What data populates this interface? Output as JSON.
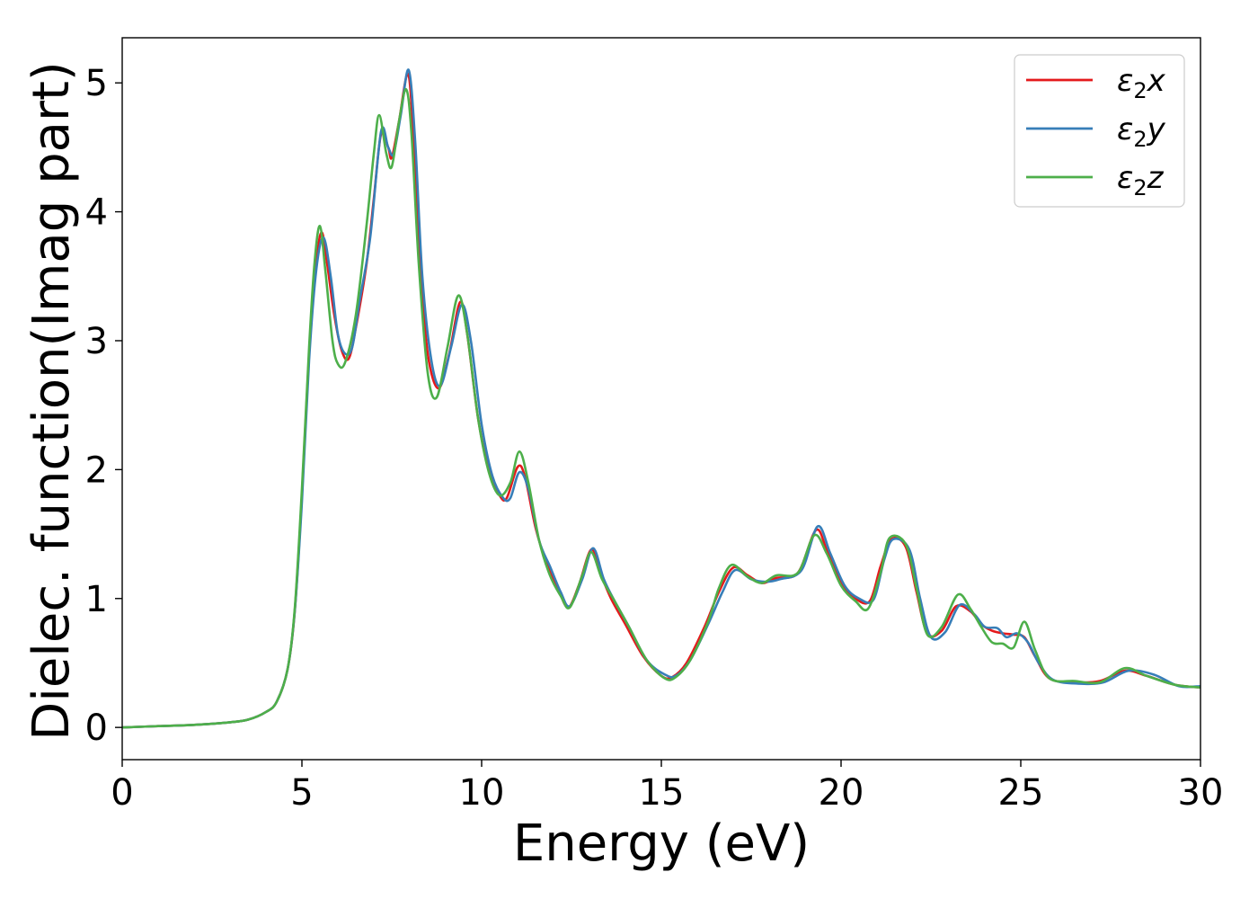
{
  "chart_data": {
    "type": "line",
    "xlabel": "Energy (eV)",
    "ylabel": "Dielec. function(Imag part)",
    "xlim": [
      0,
      30
    ],
    "ylim": [
      -0.25,
      5.35
    ],
    "xticks": [
      0,
      5,
      10,
      15,
      20,
      25,
      30
    ],
    "yticks": [
      0,
      1,
      2,
      3,
      4,
      5
    ],
    "grid": false,
    "legend_position": "top-right",
    "series": [
      {
        "name": "ε2x",
        "symbol": "ε",
        "subscript": "2",
        "suffix": "x",
        "color": "#e41a1c",
        "points": [
          [
            0,
            0
          ],
          [
            1,
            0.01
          ],
          [
            2,
            0.02
          ],
          [
            3,
            0.04
          ],
          [
            3.5,
            0.06
          ],
          [
            4,
            0.12
          ],
          [
            4.3,
            0.2
          ],
          [
            4.6,
            0.45
          ],
          [
            4.8,
            0.9
          ],
          [
            5.0,
            1.8
          ],
          [
            5.2,
            2.9
          ],
          [
            5.4,
            3.6
          ],
          [
            5.55,
            3.84
          ],
          [
            5.7,
            3.6
          ],
          [
            5.9,
            3.2
          ],
          [
            6.1,
            2.93
          ],
          [
            6.3,
            2.86
          ],
          [
            6.5,
            3.1
          ],
          [
            6.8,
            3.6
          ],
          [
            7.0,
            4.1
          ],
          [
            7.2,
            4.6
          ],
          [
            7.4,
            4.5
          ],
          [
            7.5,
            4.42
          ],
          [
            7.7,
            4.7
          ],
          [
            7.95,
            5.07
          ],
          [
            8.1,
            4.6
          ],
          [
            8.3,
            3.6
          ],
          [
            8.5,
            2.9
          ],
          [
            8.8,
            2.63
          ],
          [
            9.1,
            2.9
          ],
          [
            9.4,
            3.3
          ],
          [
            9.6,
            3.05
          ],
          [
            9.9,
            2.4
          ],
          [
            10.2,
            2.0
          ],
          [
            10.5,
            1.8
          ],
          [
            10.7,
            1.78
          ],
          [
            11.0,
            2.02
          ],
          [
            11.2,
            1.95
          ],
          [
            11.5,
            1.55
          ],
          [
            11.8,
            1.28
          ],
          [
            12.1,
            1.1
          ],
          [
            12.4,
            0.93
          ],
          [
            12.7,
            1.1
          ],
          [
            13.05,
            1.38
          ],
          [
            13.3,
            1.2
          ],
          [
            13.6,
            1.0
          ],
          [
            14.0,
            0.8
          ],
          [
            14.5,
            0.55
          ],
          [
            15.0,
            0.4
          ],
          [
            15.3,
            0.39
          ],
          [
            15.7,
            0.5
          ],
          [
            16.2,
            0.78
          ],
          [
            16.6,
            1.05
          ],
          [
            17.0,
            1.24
          ],
          [
            17.4,
            1.18
          ],
          [
            17.8,
            1.12
          ],
          [
            18.2,
            1.16
          ],
          [
            18.8,
            1.2
          ],
          [
            19.3,
            1.53
          ],
          [
            19.6,
            1.38
          ],
          [
            20.0,
            1.12
          ],
          [
            20.4,
            1.0
          ],
          [
            20.8,
            0.98
          ],
          [
            21.1,
            1.25
          ],
          [
            21.4,
            1.46
          ],
          [
            21.8,
            1.4
          ],
          [
            22.1,
            1.05
          ],
          [
            22.4,
            0.73
          ],
          [
            22.8,
            0.75
          ],
          [
            23.2,
            0.94
          ],
          [
            23.6,
            0.9
          ],
          [
            23.9,
            0.8
          ],
          [
            24.2,
            0.75
          ],
          [
            24.5,
            0.73
          ],
          [
            24.8,
            0.72
          ],
          [
            25.1,
            0.7
          ],
          [
            25.4,
            0.55
          ],
          [
            25.8,
            0.38
          ],
          [
            26.5,
            0.35
          ],
          [
            27.2,
            0.36
          ],
          [
            27.9,
            0.44
          ],
          [
            28.5,
            0.4
          ],
          [
            29.3,
            0.33
          ],
          [
            30,
            0.31
          ]
        ]
      },
      {
        "name": "ε2y",
        "symbol": "ε",
        "subscript": "2",
        "suffix": "y",
        "color": "#377eb8",
        "points": [
          [
            0,
            0
          ],
          [
            1,
            0.01
          ],
          [
            2,
            0.02
          ],
          [
            3,
            0.04
          ],
          [
            3.5,
            0.06
          ],
          [
            4,
            0.12
          ],
          [
            4.3,
            0.2
          ],
          [
            4.6,
            0.45
          ],
          [
            4.8,
            0.9
          ],
          [
            5.0,
            1.75
          ],
          [
            5.2,
            2.85
          ],
          [
            5.4,
            3.55
          ],
          [
            5.6,
            3.8
          ],
          [
            5.8,
            3.5
          ],
          [
            6.0,
            3.05
          ],
          [
            6.2,
            2.9
          ],
          [
            6.4,
            2.95
          ],
          [
            6.6,
            3.3
          ],
          [
            6.9,
            3.8
          ],
          [
            7.2,
            4.62
          ],
          [
            7.4,
            4.5
          ],
          [
            7.55,
            4.45
          ],
          [
            7.75,
            4.75
          ],
          [
            7.97,
            5.1
          ],
          [
            8.15,
            4.55
          ],
          [
            8.35,
            3.5
          ],
          [
            8.6,
            2.85
          ],
          [
            8.85,
            2.65
          ],
          [
            9.15,
            2.95
          ],
          [
            9.45,
            3.28
          ],
          [
            9.7,
            3.0
          ],
          [
            10.0,
            2.35
          ],
          [
            10.3,
            1.95
          ],
          [
            10.6,
            1.78
          ],
          [
            10.8,
            1.78
          ],
          [
            11.05,
            1.98
          ],
          [
            11.3,
            1.85
          ],
          [
            11.6,
            1.45
          ],
          [
            11.9,
            1.25
          ],
          [
            12.2,
            1.05
          ],
          [
            12.45,
            0.94
          ],
          [
            12.8,
            1.15
          ],
          [
            13.1,
            1.39
          ],
          [
            13.4,
            1.15
          ],
          [
            13.7,
            0.98
          ],
          [
            14.1,
            0.78
          ],
          [
            14.6,
            0.52
          ],
          [
            15.1,
            0.41
          ],
          [
            15.4,
            0.4
          ],
          [
            15.8,
            0.52
          ],
          [
            16.3,
            0.8
          ],
          [
            16.7,
            1.05
          ],
          [
            17.05,
            1.22
          ],
          [
            17.5,
            1.15
          ],
          [
            17.9,
            1.13
          ],
          [
            18.3,
            1.15
          ],
          [
            18.9,
            1.22
          ],
          [
            19.35,
            1.56
          ],
          [
            19.7,
            1.35
          ],
          [
            20.1,
            1.1
          ],
          [
            20.5,
            1.0
          ],
          [
            20.9,
            0.99
          ],
          [
            21.2,
            1.3
          ],
          [
            21.45,
            1.46
          ],
          [
            21.9,
            1.38
          ],
          [
            22.2,
            1.0
          ],
          [
            22.5,
            0.7
          ],
          [
            22.9,
            0.74
          ],
          [
            23.3,
            0.95
          ],
          [
            23.7,
            0.88
          ],
          [
            24.0,
            0.78
          ],
          [
            24.35,
            0.77
          ],
          [
            24.6,
            0.7
          ],
          [
            24.9,
            0.73
          ],
          [
            25.2,
            0.66
          ],
          [
            25.5,
            0.5
          ],
          [
            25.9,
            0.37
          ],
          [
            26.6,
            0.34
          ],
          [
            27.3,
            0.35
          ],
          [
            28.0,
            0.44
          ],
          [
            28.7,
            0.41
          ],
          [
            29.4,
            0.32
          ],
          [
            30,
            0.32
          ]
        ]
      },
      {
        "name": "ε2z",
        "symbol": "ε",
        "subscript": "2",
        "suffix": "z",
        "color": "#4daf4a",
        "points": [
          [
            0,
            0
          ],
          [
            1,
            0.01
          ],
          [
            2,
            0.02
          ],
          [
            3,
            0.04
          ],
          [
            3.5,
            0.06
          ],
          [
            4,
            0.12
          ],
          [
            4.3,
            0.2
          ],
          [
            4.6,
            0.45
          ],
          [
            4.8,
            0.92
          ],
          [
            5.0,
            1.85
          ],
          [
            5.2,
            2.95
          ],
          [
            5.35,
            3.6
          ],
          [
            5.5,
            3.89
          ],
          [
            5.65,
            3.55
          ],
          [
            5.85,
            3.0
          ],
          [
            6.0,
            2.82
          ],
          [
            6.2,
            2.83
          ],
          [
            6.5,
            3.2
          ],
          [
            6.8,
            3.9
          ],
          [
            7.0,
            4.45
          ],
          [
            7.15,
            4.75
          ],
          [
            7.35,
            4.45
          ],
          [
            7.5,
            4.35
          ],
          [
            7.7,
            4.7
          ],
          [
            7.9,
            4.95
          ],
          [
            8.05,
            4.6
          ],
          [
            8.25,
            3.6
          ],
          [
            8.5,
            2.75
          ],
          [
            8.75,
            2.56
          ],
          [
            9.05,
            2.95
          ],
          [
            9.35,
            3.35
          ],
          [
            9.6,
            3.05
          ],
          [
            9.9,
            2.4
          ],
          [
            10.2,
            1.98
          ],
          [
            10.5,
            1.8
          ],
          [
            10.8,
            1.9
          ],
          [
            11.05,
            2.14
          ],
          [
            11.3,
            1.9
          ],
          [
            11.6,
            1.45
          ],
          [
            11.9,
            1.18
          ],
          [
            12.2,
            1.02
          ],
          [
            12.45,
            0.93
          ],
          [
            12.8,
            1.18
          ],
          [
            13.05,
            1.36
          ],
          [
            13.35,
            1.15
          ],
          [
            13.7,
            0.98
          ],
          [
            14.1,
            0.78
          ],
          [
            14.6,
            0.52
          ],
          [
            15.1,
            0.38
          ],
          [
            15.4,
            0.39
          ],
          [
            15.8,
            0.52
          ],
          [
            16.3,
            0.82
          ],
          [
            16.6,
            1.08
          ],
          [
            16.95,
            1.26
          ],
          [
            17.4,
            1.17
          ],
          [
            17.8,
            1.12
          ],
          [
            18.2,
            1.18
          ],
          [
            18.8,
            1.2
          ],
          [
            19.25,
            1.49
          ],
          [
            19.6,
            1.35
          ],
          [
            20.0,
            1.1
          ],
          [
            20.4,
            0.98
          ],
          [
            20.75,
            0.92
          ],
          [
            21.1,
            1.2
          ],
          [
            21.35,
            1.47
          ],
          [
            21.8,
            1.42
          ],
          [
            22.1,
            1.08
          ],
          [
            22.4,
            0.72
          ],
          [
            22.8,
            0.78
          ],
          [
            23.25,
            1.03
          ],
          [
            23.6,
            0.92
          ],
          [
            23.9,
            0.78
          ],
          [
            24.2,
            0.66
          ],
          [
            24.5,
            0.65
          ],
          [
            24.8,
            0.62
          ],
          [
            25.1,
            0.82
          ],
          [
            25.4,
            0.6
          ],
          [
            25.8,
            0.38
          ],
          [
            26.5,
            0.36
          ],
          [
            27.2,
            0.35
          ],
          [
            27.9,
            0.46
          ],
          [
            28.5,
            0.4
          ],
          [
            29.3,
            0.33
          ],
          [
            30,
            0.31
          ]
        ]
      }
    ]
  }
}
